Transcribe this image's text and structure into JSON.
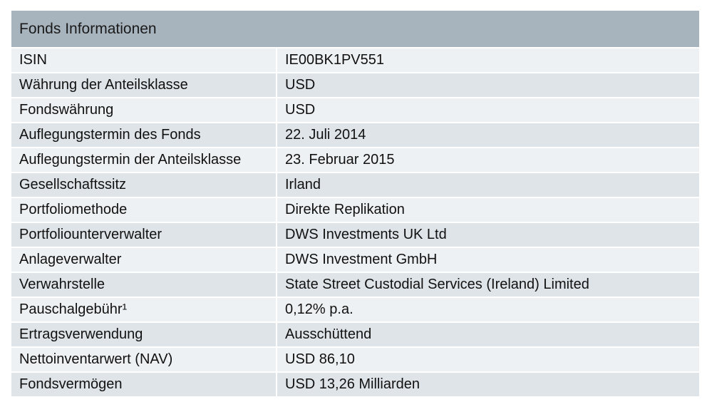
{
  "panel": {
    "title": "Fonds Informationen"
  },
  "rows": [
    {
      "label": "ISIN",
      "value": "IE00BK1PV551"
    },
    {
      "label": "Währung der Anteilsklasse",
      "value": "USD"
    },
    {
      "label": "Fondswährung",
      "value": "USD"
    },
    {
      "label": "Auflegungstermin des Fonds",
      "value": "22. Juli 2014"
    },
    {
      "label": "Auflegungstermin der Anteilsklasse",
      "value": "23. Februar 2015"
    },
    {
      "label": "Gesellschaftssitz",
      "value": "Irland"
    },
    {
      "label": "Portfoliomethode",
      "value": "Direkte Replikation"
    },
    {
      "label": "Portfoliounterverwalter",
      "value": "DWS Investments UK Ltd"
    },
    {
      "label": "Anlageverwalter",
      "value": "DWS Investment GmbH"
    },
    {
      "label": "Verwahrstelle",
      "value": "State Street Custodial Services (Ireland) Limited"
    },
    {
      "label": "Pauschalgebühr¹",
      "value": "0,12% p.a."
    },
    {
      "label": "Ertragsverwendung",
      "value": "Ausschüttend"
    },
    {
      "label": "Nettoinventarwert (NAV)",
      "value": "USD 86,10"
    },
    {
      "label": "Fondsvermögen",
      "value": "USD 13,26 Milliarden"
    }
  ]
}
